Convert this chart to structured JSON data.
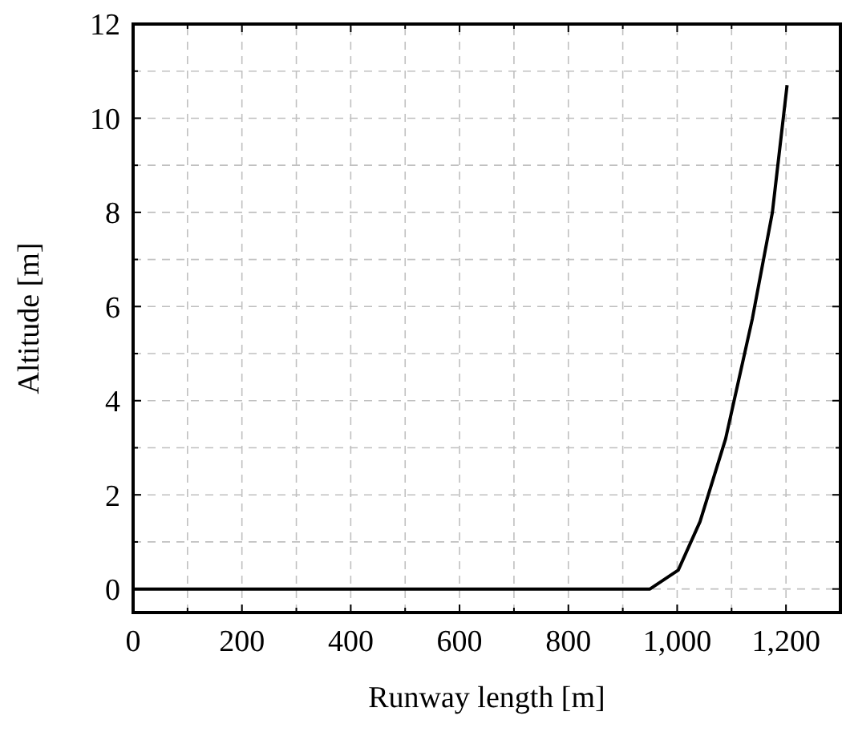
{
  "chart_data": {
    "type": "line",
    "xlabel": "Runway length [m]",
    "ylabel": "Altitude [m]",
    "xlim": [
      0,
      1300
    ],
    "ylim": [
      -0.5,
      12
    ],
    "xticks": [
      0,
      {
        "value": 100,
        "label": null
      },
      200,
      {
        "value": 300,
        "label": null
      },
      400,
      {
        "value": 500,
        "label": null
      },
      600,
      {
        "value": 700,
        "label": null
      },
      800,
      {
        "value": 900,
        "label": null
      },
      {
        "value": 1000,
        "label": "1,000"
      },
      {
        "value": 1100,
        "label": null
      },
      {
        "value": 1200,
        "label": "1,200"
      }
    ],
    "yticks": [
      0,
      {
        "value": 1,
        "label": null
      },
      2,
      {
        "value": 3,
        "label": null
      },
      4,
      {
        "value": 5,
        "label": null
      },
      6,
      {
        "value": 7,
        "label": null
      },
      8,
      {
        "value": 9,
        "label": null
      },
      10,
      {
        "value": 11,
        "label": null
      },
      12
    ],
    "grid": true,
    "marker": "none",
    "line_style": "solid",
    "series": [
      {
        "color": "#000000",
        "x": [
          0,
          950,
          1002,
          1042,
          1089,
          1138,
          1175,
          1202
        ],
        "values": [
          0,
          0,
          0.4,
          1.43,
          3.19,
          5.73,
          8.0,
          10.7
        ]
      }
    ]
  }
}
